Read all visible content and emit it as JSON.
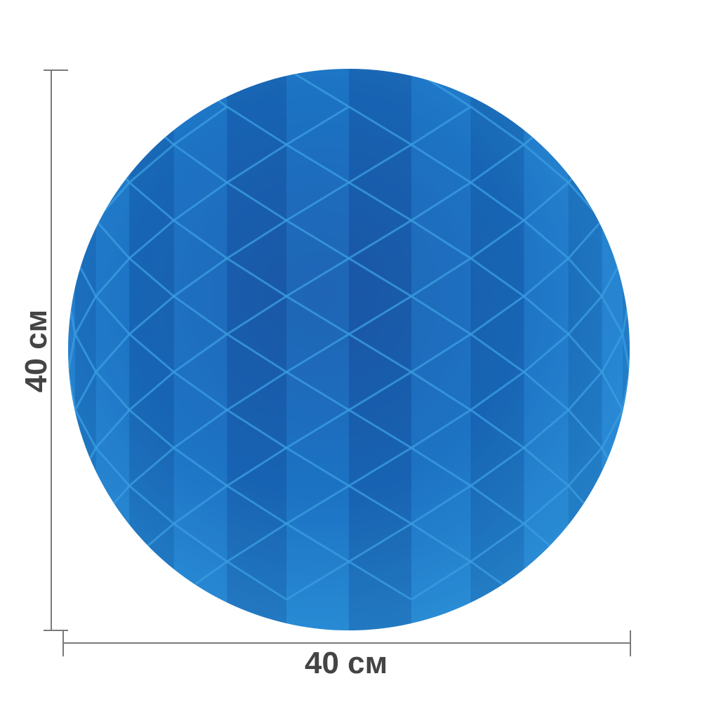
{
  "dimensions": {
    "width_label": "40 см",
    "height_label": "40 см"
  },
  "colors": {
    "ball_light": "#2a8fd6",
    "ball_mid": "#1a6fc0",
    "ball_dark": "#0f3e8a",
    "dimension_line": "#7a7a7a",
    "label_text": "#444444"
  }
}
